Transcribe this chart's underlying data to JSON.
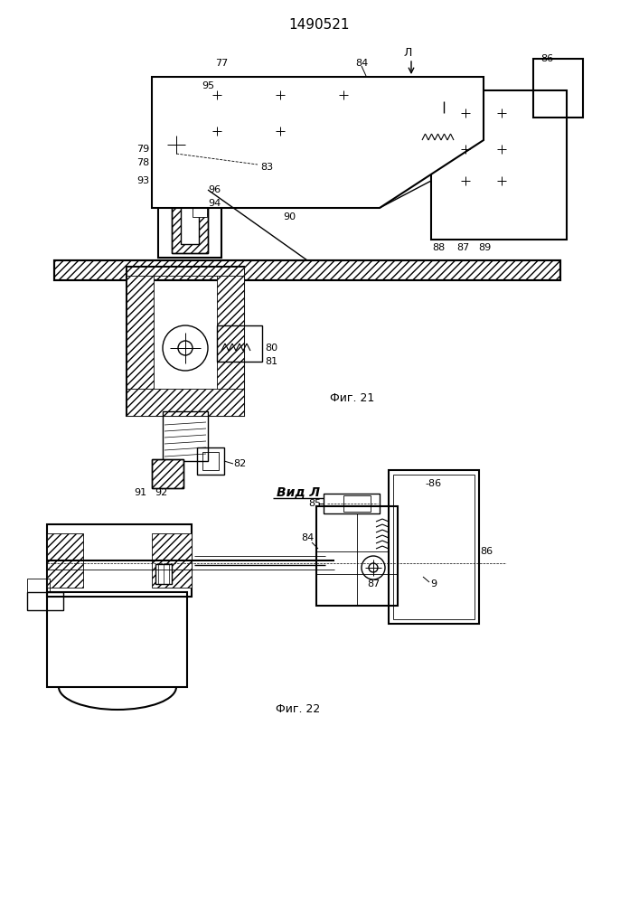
{
  "title": "1490521",
  "fig21_label": "Фиг. 21",
  "fig22_label": "Фиг. 22",
  "vid_label": "Вид Л",
  "bg_color": "#ffffff",
  "line_color": "#000000",
  "title_fontsize": 11,
  "label_fontsize": 9,
  "annotation_fontsize": 8
}
